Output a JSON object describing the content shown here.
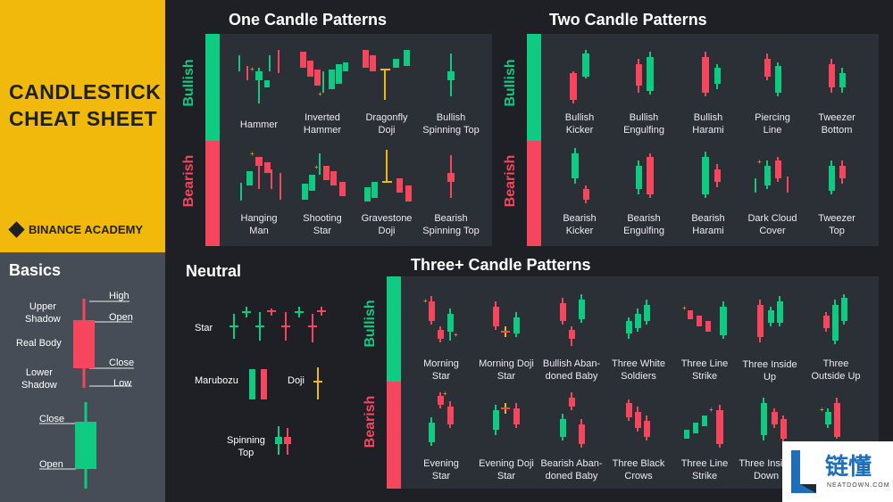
{
  "title_line1": "CANDLESTICK",
  "title_line2": "CHEAT SHEET",
  "brand": "BINANCE ACADEMY",
  "colors": {
    "bull": "#0ecb81",
    "bear": "#f6465d",
    "doji": "#f0b90b",
    "bg": "#1e2026",
    "panel": "#2b2f36"
  },
  "basics": {
    "title": "Basics",
    "upper_shadow": [
      "Upper",
      "Shadow"
    ],
    "real_body": "Real Body",
    "lower_shadow": [
      "Lower",
      "Shadow"
    ],
    "high": "High",
    "open1": "Open",
    "close1": "Close",
    "low": "Low",
    "close2": "Close",
    "open2": "Open"
  },
  "sections": {
    "one": "One Candle Patterns",
    "two": "Two Candle Patterns",
    "neutral": "Neutral",
    "three": "Three+ Candle Patterns",
    "bullish": "Bullish",
    "bearish": "Bearish"
  },
  "one_bull": [
    [
      "Hammer"
    ],
    [
      "Inverted",
      "Hammer"
    ],
    [
      "Dragonfly",
      "Doji"
    ],
    [
      "Bullish",
      "Spinning Top"
    ]
  ],
  "one_bear": [
    [
      "Hanging",
      "Man"
    ],
    [
      "Shooting",
      "Star"
    ],
    [
      "Gravestone",
      "Doji"
    ],
    [
      "Bearish",
      "Spinning Top"
    ]
  ],
  "two_bull": [
    [
      "Bullish",
      "Kicker"
    ],
    [
      "Bullish",
      "Engulfing"
    ],
    [
      "Bullish",
      "Harami"
    ],
    [
      "Piercing",
      "Line"
    ],
    [
      "Tweezer",
      "Bottom"
    ]
  ],
  "two_bear": [
    [
      "Bearish",
      "Kicker"
    ],
    [
      "Bearish",
      "Engulfing"
    ],
    [
      "Bearish",
      "Harami"
    ],
    [
      "Dark Cloud",
      "Cover"
    ],
    [
      "Tweezer",
      "Top"
    ]
  ],
  "neutral": {
    "star": "Star",
    "marubozu": "Marubozu",
    "doji": "Doji",
    "spinning": [
      "Spinning",
      "Top"
    ]
  },
  "three_bull": [
    [
      "Morning",
      "Star"
    ],
    [
      "Morning Doji",
      "Star"
    ],
    [
      "Bullish Aban-",
      "doned Baby"
    ],
    [
      "Three White",
      "Soldiers"
    ],
    [
      "Three Line",
      "Strike"
    ],
    [
      "Three Inside",
      "Up"
    ],
    [
      "Three",
      "Outside Up"
    ]
  ],
  "three_bear": [
    [
      "Evening",
      "Star"
    ],
    [
      "Evening Doji",
      "Star"
    ],
    [
      "Bearish Aban-",
      "doned Baby"
    ],
    [
      "Three Black",
      "Crows"
    ],
    [
      "Three Line",
      "Strike"
    ],
    [
      "Three Inside",
      "Down"
    ]
  ],
  "watermark": {
    "text": "链懂",
    "sub": "NEATDOWN.COM"
  }
}
